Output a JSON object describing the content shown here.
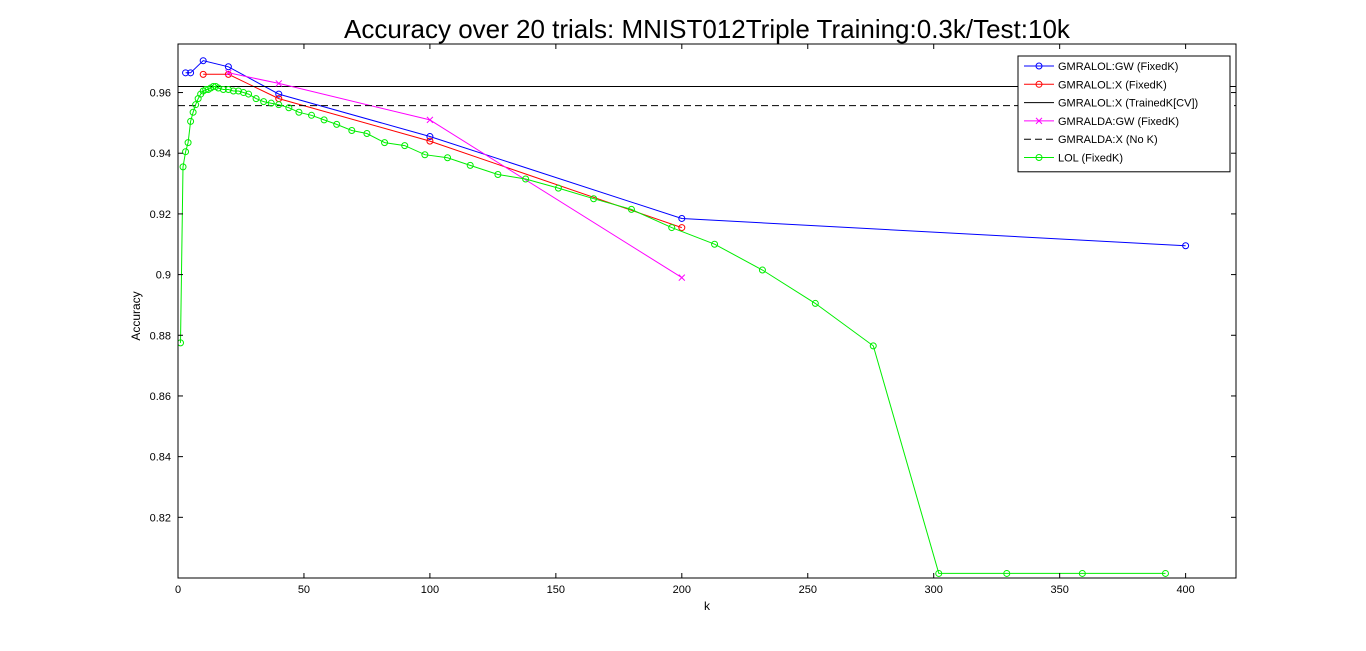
{
  "chart_data": {
    "type": "line",
    "title": "Accuracy over 20 trials: MNIST012Triple Training:0.3k/Test:10k",
    "xlabel": "k",
    "ylabel": "Accuracy",
    "xlim": [
      0,
      420
    ],
    "ylim": [
      0.8,
      0.976
    ],
    "xticks": [
      0,
      50,
      100,
      150,
      200,
      250,
      300,
      350,
      400
    ],
    "yticks": [
      0.82,
      0.84,
      0.86,
      0.88,
      0.9,
      0.92,
      0.94,
      0.96
    ],
    "ytick_labels": [
      "0.82",
      "0.84",
      "0.86",
      "0.88",
      "0.9",
      "0.92",
      "0.94",
      "0.96"
    ],
    "grid": false,
    "legend_position": "top-right",
    "series": [
      {
        "name": "GMRALOL:GW (FixedK)",
        "color": "#0000ff",
        "marker": "circle",
        "linestyle": "solid",
        "x": [
          3,
          5,
          10,
          20,
          40,
          100,
          200,
          400
        ],
        "y": [
          0.9665,
          0.9665,
          0.9705,
          0.9685,
          0.9595,
          0.9455,
          0.9185,
          0.9095
        ]
      },
      {
        "name": "GMRALOL:X (FixedK)",
        "color": "#ff0000",
        "marker": "circle",
        "linestyle": "solid",
        "x": [
          10,
          20,
          40,
          100,
          200
        ],
        "y": [
          0.966,
          0.966,
          0.958,
          0.944,
          0.9155
        ]
      },
      {
        "name": "GMRALOL:X (TrainedK[CV])",
        "color": "#000000",
        "marker": "none",
        "linestyle": "solid",
        "hline": 0.962
      },
      {
        "name": "GMRALDA:GW (FixedK)",
        "color": "#ff00ff",
        "marker": "x",
        "linestyle": "solid",
        "x": [
          20,
          40,
          100,
          200
        ],
        "y": [
          0.9665,
          0.963,
          0.951,
          0.899
        ]
      },
      {
        "name": "GMRALDA:X (No K)",
        "color": "#000000",
        "marker": "none",
        "linestyle": "dashed",
        "hline": 0.9557
      },
      {
        "name": "LOL (FixedK)",
        "color": "#00ee00",
        "marker": "circle",
        "linestyle": "solid",
        "x": [
          1,
          2,
          3,
          4,
          5,
          6,
          7,
          8,
          9,
          10,
          11,
          12,
          13,
          14,
          15,
          16,
          18,
          20,
          22,
          24,
          26,
          28,
          31,
          34,
          37,
          40,
          44,
          48,
          53,
          58,
          63,
          69,
          75,
          82,
          90,
          98,
          107,
          116,
          127,
          138,
          151,
          165,
          180,
          196,
          213,
          232,
          253,
          276,
          302,
          329,
          359,
          392
        ],
        "y": [
          0.8775,
          0.9355,
          0.9405,
          0.9435,
          0.9505,
          0.9535,
          0.956,
          0.958,
          0.9595,
          0.9605,
          0.961,
          0.961,
          0.9615,
          0.962,
          0.962,
          0.9615,
          0.961,
          0.961,
          0.9605,
          0.9605,
          0.96,
          0.9595,
          0.958,
          0.957,
          0.9565,
          0.956,
          0.955,
          0.9535,
          0.9525,
          0.951,
          0.9495,
          0.9475,
          0.9465,
          0.9435,
          0.9425,
          0.9395,
          0.9385,
          0.936,
          0.933,
          0.9315,
          0.9285,
          0.925,
          0.9215,
          0.9155,
          0.91,
          0.9015,
          0.8905,
          0.8765,
          0.8015,
          0.8015,
          0.8015,
          0.8015
        ]
      }
    ]
  }
}
